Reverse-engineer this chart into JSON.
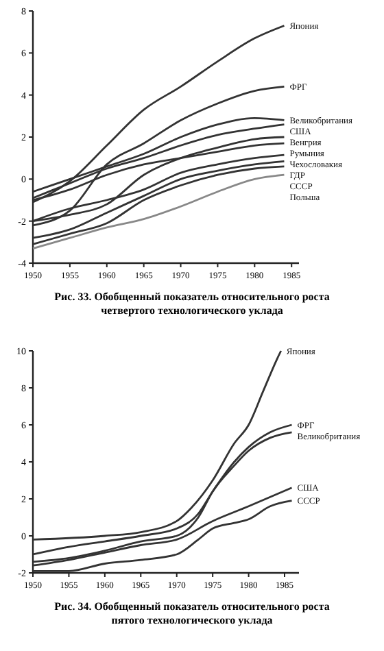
{
  "chart_data": [
    {
      "type": "line",
      "title": "Рис. 33. Обобщенный показатель относительного роста четвертого технологического уклада",
      "x": [
        1950,
        1955,
        1960,
        1965,
        1970,
        1975,
        1980,
        1984
      ],
      "xlim": [
        1950,
        1986
      ],
      "xticks": [
        1950,
        1955,
        1960,
        1965,
        1970,
        1975,
        1980,
        1985
      ],
      "ylim": [
        -4,
        8
      ],
      "yticks": [
        -4,
        -2,
        0,
        2,
        4,
        6,
        8
      ],
      "legend": false,
      "grid": false,
      "marker": "none",
      "line_style": "solid",
      "series": [
        {
          "name": "Япония",
          "color": "#333333",
          "values": [
            -1.1,
            -0.1,
            1.6,
            3.3,
            4.4,
            5.6,
            6.7,
            7.3
          ]
        },
        {
          "name": "ФРГ",
          "color": "#333333",
          "values": [
            -2.2,
            -1.5,
            0.7,
            1.7,
            2.8,
            3.6,
            4.2,
            4.4
          ]
        },
        {
          "name": "Великобритания",
          "color": "#333333",
          "values": [
            -0.6,
            0,
            0.6,
            1.2,
            2.0,
            2.6,
            2.9,
            2.8
          ]
        },
        {
          "name": "США",
          "color": "#333333",
          "values": [
            -0.9,
            -0.2,
            0.5,
            1.0,
            1.6,
            2.1,
            2.4,
            2.6
          ]
        },
        {
          "name": "Венгрия",
          "color": "#333333",
          "values": [
            -2.0,
            -1.7,
            -1.2,
            0.2,
            1.0,
            1.5,
            1.9,
            2.0
          ]
        },
        {
          "name": "Румыния",
          "color": "#333333",
          "values": [
            -1.0,
            -0.5,
            0.2,
            0.7,
            1.0,
            1.3,
            1.6,
            1.7
          ]
        },
        {
          "name": "Чехословакия",
          "color": "#333333",
          "values": [
            -2.0,
            -1.4,
            -1.0,
            -0.5,
            0.3,
            0.7,
            1.0,
            1.15
          ]
        },
        {
          "name": "ГДР",
          "color": "#333333",
          "values": [
            -2.8,
            -2.4,
            -1.6,
            -0.8,
            0,
            0.4,
            0.7,
            0.85
          ]
        },
        {
          "name": "СССР",
          "color": "#333333",
          "values": [
            -3.1,
            -2.6,
            -2.1,
            -1.0,
            -0.3,
            0.2,
            0.5,
            0.6
          ]
        },
        {
          "name": "Польша",
          "color": "#888888",
          "values": [
            -3.3,
            -2.8,
            -2.3,
            -1.9,
            -1.3,
            -0.6,
            0,
            0.2
          ]
        }
      ]
    },
    {
      "type": "line",
      "title": "Рис. 34. Обобщенный показатель относительного роста пятого технологического уклада",
      "xlim": [
        1950,
        1987
      ],
      "xticks": [
        1950,
        1955,
        1960,
        1965,
        1970,
        1975,
        1980,
        1985
      ],
      "ylim": [
        -2,
        10
      ],
      "yticks": [
        -2,
        0,
        2,
        4,
        6,
        8,
        10
      ],
      "legend": false,
      "grid": false,
      "marker": "none",
      "line_style": "solid",
      "series": [
        {
          "name": "Япония",
          "color": "#333333",
          "x": [
            1950,
            1960,
            1965,
            1970,
            1972,
            1975,
            1978,
            1980,
            1982,
            1984,
            1984.5
          ],
          "values": [
            -0.2,
            0,
            0.2,
            0.8,
            1.5,
            3.0,
            5.0,
            6.0,
            7.8,
            9.6,
            10
          ]
        },
        {
          "name": "ФРГ",
          "color": "#333333",
          "x": [
            1950,
            1955,
            1960,
            1965,
            1970,
            1973,
            1975,
            1978,
            1980,
            1983,
            1986
          ],
          "values": [
            -1.0,
            -0.6,
            -0.3,
            0,
            0.4,
            1.2,
            2.4,
            4.0,
            4.8,
            5.6,
            6.0
          ]
        },
        {
          "name": "Великобритания",
          "color": "#333333",
          "x": [
            1950,
            1955,
            1960,
            1965,
            1970,
            1973,
            1975,
            1978,
            1980,
            1983,
            1986
          ],
          "values": [
            -1.4,
            -1.2,
            -0.8,
            -0.3,
            0,
            1.0,
            2.4,
            3.8,
            4.6,
            5.3,
            5.6
          ]
        },
        {
          "name": "США",
          "color": "#333333",
          "x": [
            1950,
            1955,
            1960,
            1965,
            1970,
            1975,
            1980,
            1986
          ],
          "values": [
            -1.6,
            -1.3,
            -0.9,
            -0.5,
            -0.2,
            0.8,
            1.6,
            2.6
          ]
        },
        {
          "name": "СССР",
          "color": "#333333",
          "x": [
            1950,
            1955,
            1960,
            1965,
            1970,
            1973,
            1975,
            1978,
            1980,
            1983,
            1986
          ],
          "values": [
            -1.9,
            -1.9,
            -1.5,
            -1.3,
            -1.0,
            -0.2,
            0.4,
            0.7,
            0.9,
            1.6,
            1.9
          ]
        }
      ]
    }
  ]
}
